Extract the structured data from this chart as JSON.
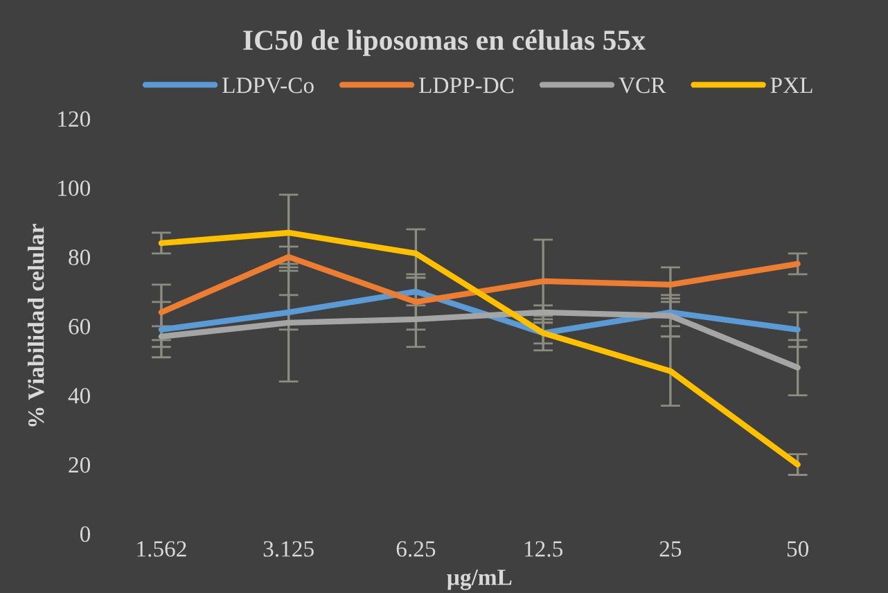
{
  "chart_data": {
    "type": "line",
    "title": "IC50 de liposomas en células 55x",
    "xlabel": "µg/mL",
    "ylabel": "% Viabilidad celular",
    "categories": [
      "1.562",
      "3.125",
      "6.25",
      "12.5",
      "25",
      "50"
    ],
    "series": [
      {
        "name": "LDPV-Co",
        "color": "#5b9bd5",
        "values": [
          59,
          64,
          70,
          58,
          64,
          59
        ],
        "errors": [
          8,
          5,
          4,
          3,
          4,
          5
        ]
      },
      {
        "name": "LDPP-DC",
        "color": "#ed7d31",
        "values": [
          64,
          80,
          67,
          73,
          72,
          78
        ],
        "errors": [
          8,
          3,
          8,
          12,
          5,
          3
        ]
      },
      {
        "name": "VCR",
        "color": "#a5a5a5",
        "values": [
          57,
          61,
          62,
          64,
          63,
          48
        ],
        "errors": [
          3,
          17,
          8,
          2,
          6,
          8
        ]
      },
      {
        "name": "PXL",
        "color": "#ffc000",
        "values": [
          84,
          87,
          81,
          58,
          47,
          20
        ],
        "errors": [
          3,
          11,
          7,
          5,
          10,
          3
        ]
      }
    ],
    "ylim": [
      0,
      120
    ],
    "yticks": [
      0,
      20,
      40,
      60,
      80,
      100,
      120
    ],
    "grid": false,
    "legend": "top",
    "marker": "none",
    "line_style": "solid"
  }
}
